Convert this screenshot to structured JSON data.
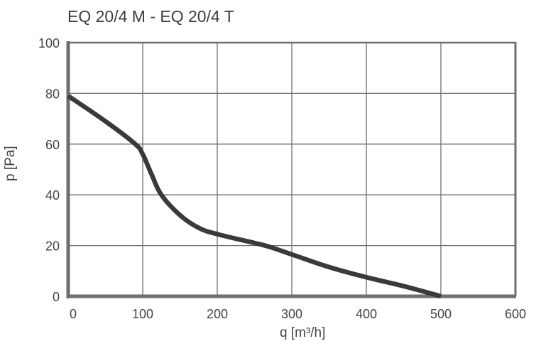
{
  "chart_data": {
    "type": "line",
    "title": "EQ 20/4 M - EQ 20/4 T",
    "xlabel": "q [m³/h]",
    "ylabel": "p [Pa]",
    "xlim": [
      0,
      600
    ],
    "ylim": [
      0,
      100
    ],
    "x_ticks": [
      0,
      100,
      200,
      300,
      400,
      500,
      600
    ],
    "x_tick_labels": [
      "0",
      "100",
      "200",
      "300",
      "400",
      "500",
      "600"
    ],
    "y_ticks": [
      0,
      20,
      40,
      60,
      80,
      100
    ],
    "y_tick_labels": [
      "0",
      "20",
      "40",
      "60",
      "80",
      "100"
    ],
    "grid": true,
    "series": [
      {
        "name": "EQ 20/4 M - EQ 20/4 T",
        "color": "#3a3a3a",
        "x": [
          0,
          50,
          90,
          100,
          112,
          125,
          150,
          175,
          200,
          250,
          270,
          300,
          350,
          400,
          450,
          500
        ],
        "y": [
          79,
          69,
          60,
          56,
          48,
          40,
          32,
          27,
          24.5,
          21,
          19.5,
          16.5,
          11.5,
          7.5,
          4,
          0
        ]
      }
    ]
  },
  "colors": {
    "axis": "#6e6e6e",
    "grid": "#6e6e6e",
    "curve": "#3a3a3a"
  }
}
